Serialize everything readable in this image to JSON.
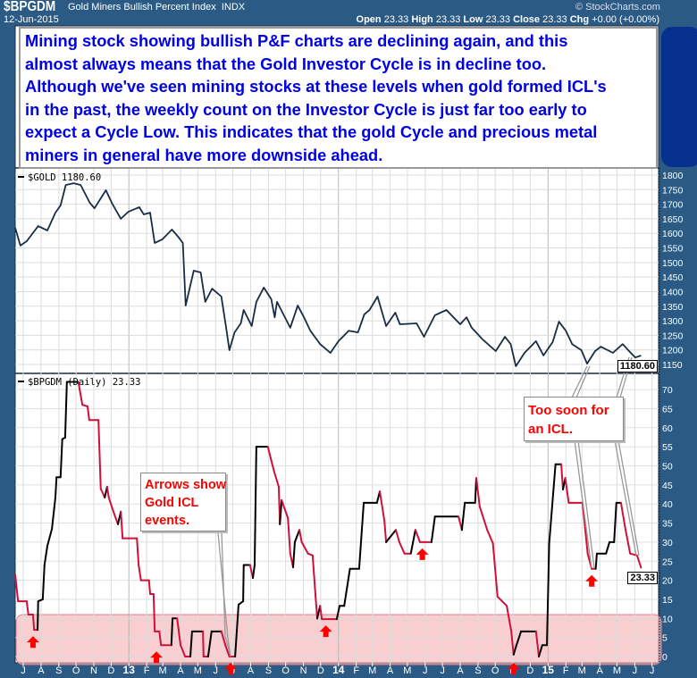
{
  "header": {
    "symbol": "$BPGDM",
    "name": "Gold Miners Bullish Percent Index",
    "exchange": "INDX",
    "copyright": "© StockCharts.com",
    "date": "12-Jun-2015",
    "ohlc": [
      {
        "label": "Open",
        "value": "23.33"
      },
      {
        "label": "High",
        "value": "23.33"
      },
      {
        "label": "Low",
        "value": "23.33"
      },
      {
        "label": "Close",
        "value": "23.33"
      },
      {
        "label": "Chg",
        "value": "+0.00 (+0.00%)"
      }
    ]
  },
  "annotation": {
    "lines": [
      "Mining stock showing bullish P&F charts are declining again, and this",
      "almost always means that the Gold Investor Cycle is in decline too.",
      "Although we've seen mining stocks at these levels when gold formed ICL's",
      "in the past, the weekly count on the Investor Cycle is just far too early to",
      "expect a Cycle Low.  This indicates that the gold Cycle and precious metal",
      "miners in general have more downside ahead."
    ],
    "callout_arrows": [
      "Arrows show",
      "Gold ICL",
      "events."
    ],
    "callout_soon": [
      "Too soon for",
      "an ICL."
    ]
  },
  "colors": {
    "background": "#2b5b84",
    "gold_line": "#1a2c44",
    "rising": "#000000",
    "falling": "#d0103a",
    "zone": "#f4b4b8",
    "arrow": "#ff0000",
    "text_blue": "#0000e6"
  },
  "chart_data": [
    {
      "type": "line",
      "legend": "$GOLD 1180.60",
      "last_value": "1180.60",
      "ylim": [
        1150,
        1800
      ],
      "y_ticks": [
        1150,
        1200,
        1250,
        1300,
        1350,
        1400,
        1450,
        1500,
        1550,
        1600,
        1650,
        1700,
        1750,
        1800
      ],
      "grid": true,
      "points": [
        [
          "2012-06-17",
          1619
        ],
        [
          "2012-06-26",
          1558
        ],
        [
          "2012-07-07",
          1573
        ],
        [
          "2012-07-27",
          1625
        ],
        [
          "2012-08-12",
          1610
        ],
        [
          "2012-08-26",
          1671
        ],
        [
          "2012-09-04",
          1696
        ],
        [
          "2012-09-13",
          1766
        ],
        [
          "2012-09-27",
          1772
        ],
        [
          "2012-10-09",
          1766
        ],
        [
          "2012-10-25",
          1705
        ],
        [
          "2012-11-02",
          1686
        ],
        [
          "2012-11-22",
          1748
        ],
        [
          "2012-12-03",
          1702
        ],
        [
          "2012-12-18",
          1650
        ],
        [
          "2012-12-31",
          1674
        ],
        [
          "2013-01-19",
          1690
        ],
        [
          "2013-01-27",
          1665
        ],
        [
          "2013-02-07",
          1671
        ],
        [
          "2013-02-15",
          1567
        ],
        [
          "2013-02-28",
          1579
        ],
        [
          "2013-03-17",
          1613
        ],
        [
          "2013-03-28",
          1588
        ],
        [
          "2013-04-05",
          1567
        ],
        [
          "2013-04-10",
          1352
        ],
        [
          "2013-04-24",
          1472
        ],
        [
          "2013-05-06",
          1466
        ],
        [
          "2013-05-14",
          1365
        ],
        [
          "2013-05-26",
          1410
        ],
        [
          "2013-06-11",
          1383
        ],
        [
          "2013-06-19",
          1282
        ],
        [
          "2013-06-25",
          1199
        ],
        [
          "2013-07-04",
          1260
        ],
        [
          "2013-07-15",
          1291
        ],
        [
          "2013-07-20",
          1337
        ],
        [
          "2013-08-03",
          1282
        ],
        [
          "2013-08-11",
          1365
        ],
        [
          "2013-08-24",
          1414
        ],
        [
          "2013-09-06",
          1374
        ],
        [
          "2013-09-12",
          1312
        ],
        [
          "2013-09-16",
          1365
        ],
        [
          "2013-10-09",
          1276
        ],
        [
          "2013-10-22",
          1352
        ],
        [
          "2013-11-02",
          1312
        ],
        [
          "2013-11-13",
          1266
        ],
        [
          "2013-11-30",
          1220
        ],
        [
          "2013-12-18",
          1190
        ],
        [
          "2014-01-01",
          1230
        ],
        [
          "2014-01-19",
          1266
        ],
        [
          "2014-02-04",
          1260
        ],
        [
          "2014-02-15",
          1322
        ],
        [
          "2014-02-24",
          1337
        ],
        [
          "2014-03-10",
          1383
        ],
        [
          "2014-03-25",
          1282
        ],
        [
          "2014-04-10",
          1328
        ],
        [
          "2014-04-18",
          1288
        ],
        [
          "2014-05-17",
          1291
        ],
        [
          "2014-05-30",
          1245
        ],
        [
          "2014-06-18",
          1319
        ],
        [
          "2014-07-08",
          1337
        ],
        [
          "2014-08-01",
          1288
        ],
        [
          "2014-08-12",
          1312
        ],
        [
          "2014-08-21",
          1276
        ],
        [
          "2014-09-09",
          1236
        ],
        [
          "2014-10-02",
          1196
        ],
        [
          "2014-10-18",
          1245
        ],
        [
          "2014-10-28",
          1220
        ],
        [
          "2014-11-06",
          1144
        ],
        [
          "2014-11-21",
          1190
        ],
        [
          "2014-12-11",
          1230
        ],
        [
          "2014-12-24",
          1181
        ],
        [
          "2015-01-09",
          1227
        ],
        [
          "2015-01-20",
          1297
        ],
        [
          "2015-02-01",
          1266
        ],
        [
          "2015-02-12",
          1220
        ],
        [
          "2015-02-28",
          1199
        ],
        [
          "2015-03-10",
          1153
        ],
        [
          "2015-03-24",
          1196
        ],
        [
          "2015-04-03",
          1211
        ],
        [
          "2015-04-24",
          1190
        ],
        [
          "2015-05-11",
          1220
        ],
        [
          "2015-05-25",
          1190
        ],
        [
          "2015-06-02",
          1174
        ],
        [
          "2015-06-12",
          1180.6
        ]
      ]
    },
    {
      "type": "line",
      "legend": "$BPGDM (Daily) 23.33",
      "last_value": "23.33",
      "ylim": [
        0,
        72
      ],
      "y_ticks": [
        0,
        5,
        10,
        15,
        20,
        25,
        30,
        35,
        40,
        45,
        50,
        55,
        60,
        65,
        70
      ],
      "grid": true,
      "zone": [
        0,
        11
      ],
      "points": [
        [
          "2012-06-17",
          21.5
        ],
        [
          "2012-06-22",
          14.5
        ],
        [
          "2012-07-07",
          14.5
        ],
        [
          "2012-07-10",
          11
        ],
        [
          "2012-07-18",
          11
        ],
        [
          "2012-07-20",
          7
        ],
        [
          "2012-07-26",
          7
        ],
        [
          "2012-07-27",
          14.5
        ],
        [
          "2012-08-04",
          15
        ],
        [
          "2012-08-07",
          24
        ],
        [
          "2012-08-12",
          29
        ],
        [
          "2012-08-20",
          33.5
        ],
        [
          "2012-08-26",
          41.7
        ],
        [
          "2012-08-28",
          47
        ],
        [
          "2012-09-04",
          47
        ],
        [
          "2012-09-07",
          57
        ],
        [
          "2012-09-12",
          57.4
        ],
        [
          "2012-09-15",
          72
        ],
        [
          "2012-10-05",
          72
        ],
        [
          "2012-10-12",
          66
        ],
        [
          "2012-10-21",
          65.6
        ],
        [
          "2012-10-24",
          62
        ],
        [
          "2012-11-09",
          62
        ],
        [
          "2012-11-13",
          44
        ],
        [
          "2012-11-20",
          41.7
        ],
        [
          "2012-11-24",
          44.5
        ],
        [
          "2012-11-27",
          41.7
        ],
        [
          "2012-12-05",
          38
        ],
        [
          "2012-12-13",
          34.7
        ],
        [
          "2012-12-18",
          38
        ],
        [
          "2012-12-21",
          31
        ],
        [
          "2013-01-15",
          31
        ],
        [
          "2013-01-18",
          24
        ],
        [
          "2013-01-22",
          20
        ],
        [
          "2013-02-05",
          20
        ],
        [
          "2013-02-07",
          16.4
        ],
        [
          "2013-02-13",
          16.4
        ],
        [
          "2013-02-15",
          6.6
        ],
        [
          "2013-02-23",
          6.6
        ],
        [
          "2013-02-26",
          3
        ],
        [
          "2013-03-16",
          3
        ],
        [
          "2013-03-18",
          10
        ],
        [
          "2013-03-26",
          10
        ],
        [
          "2013-04-01",
          3
        ],
        [
          "2013-04-09",
          0
        ],
        [
          "2013-04-18",
          0
        ],
        [
          "2013-04-21",
          6.6
        ],
        [
          "2013-05-10",
          6.6
        ],
        [
          "2013-05-11",
          0
        ],
        [
          "2013-05-19",
          0
        ],
        [
          "2013-05-25",
          6.6
        ],
        [
          "2013-06-11",
          6.6
        ],
        [
          "2013-06-18",
          3
        ],
        [
          "2013-06-25",
          0
        ],
        [
          "2013-07-05",
          0
        ],
        [
          "2013-07-11",
          13.6
        ],
        [
          "2013-07-19",
          14.5
        ],
        [
          "2013-07-20",
          24
        ],
        [
          "2013-07-31",
          24
        ],
        [
          "2013-08-05",
          20.6
        ],
        [
          "2013-08-08",
          24
        ],
        [
          "2013-08-11",
          55
        ],
        [
          "2013-08-31",
          55
        ],
        [
          "2013-09-05",
          52
        ],
        [
          "2013-09-11",
          48.5
        ],
        [
          "2013-09-19",
          44.5
        ],
        [
          "2013-09-21",
          34.7
        ],
        [
          "2013-09-24",
          41
        ],
        [
          "2013-10-05",
          36.3
        ],
        [
          "2013-10-09",
          27
        ],
        [
          "2013-10-14",
          23.4
        ],
        [
          "2013-10-17",
          30
        ],
        [
          "2013-10-25",
          33.2
        ],
        [
          "2013-10-29",
          30
        ],
        [
          "2013-11-09",
          27
        ],
        [
          "2013-11-17",
          26.5
        ],
        [
          "2013-11-22",
          16
        ],
        [
          "2013-11-25",
          10
        ],
        [
          "2013-11-30",
          13.3
        ],
        [
          "2013-12-03",
          9.8
        ],
        [
          "2013-12-29",
          9.8
        ],
        [
          "2014-01-03",
          13.3
        ],
        [
          "2014-01-11",
          13.3
        ],
        [
          "2014-01-21",
          23
        ],
        [
          "2014-02-06",
          23
        ],
        [
          "2014-02-14",
          40.3
        ],
        [
          "2014-03-09",
          40.3
        ],
        [
          "2014-03-14",
          43.3
        ],
        [
          "2014-03-22",
          35.6
        ],
        [
          "2014-03-25",
          30
        ],
        [
          "2014-04-11",
          33.2
        ],
        [
          "2014-04-17",
          30
        ],
        [
          "2014-04-26",
          27
        ],
        [
          "2014-05-07",
          27
        ],
        [
          "2014-05-15",
          33.2
        ],
        [
          "2014-05-23",
          30
        ],
        [
          "2014-06-12",
          30
        ],
        [
          "2014-06-18",
          36.7
        ],
        [
          "2014-07-29",
          36.7
        ],
        [
          "2014-08-04",
          33.2
        ],
        [
          "2014-08-09",
          40.3
        ],
        [
          "2014-08-27",
          40.3
        ],
        [
          "2014-08-29",
          46.8
        ],
        [
          "2014-09-04",
          39.3
        ],
        [
          "2014-09-17",
          33.2
        ],
        [
          "2014-09-27",
          29.7
        ],
        [
          "2014-10-05",
          15.7
        ],
        [
          "2014-10-21",
          13.3
        ],
        [
          "2014-10-29",
          6.6
        ],
        [
          "2014-11-02",
          0.5
        ],
        [
          "2014-11-07",
          3
        ],
        [
          "2014-11-15",
          6.6
        ],
        [
          "2014-12-11",
          6.6
        ],
        [
          "2014-12-16",
          0
        ],
        [
          "2014-12-22",
          3
        ],
        [
          "2014-12-30",
          3
        ],
        [
          "2015-01-03",
          29.7
        ],
        [
          "2015-01-14",
          50.4
        ],
        [
          "2015-01-24",
          50.4
        ],
        [
          "2015-01-27",
          43.8
        ],
        [
          "2015-01-31",
          46.8
        ],
        [
          "2015-02-06",
          40.3
        ],
        [
          "2015-03-02",
          40.3
        ],
        [
          "2015-03-11",
          27
        ],
        [
          "2015-03-18",
          23
        ],
        [
          "2015-03-25",
          23
        ],
        [
          "2015-03-27",
          27
        ],
        [
          "2015-04-12",
          27
        ],
        [
          "2015-04-18",
          30
        ],
        [
          "2015-04-26",
          30
        ],
        [
          "2015-04-30",
          40.3
        ],
        [
          "2015-05-08",
          40.3
        ],
        [
          "2015-05-16",
          33.2
        ],
        [
          "2015-05-24",
          27
        ],
        [
          "2015-06-05",
          26.5
        ],
        [
          "2015-06-12",
          23.33
        ]
      ],
      "icl_arrows": [
        [
          "2012-07-18",
          7
        ],
        [
          "2013-02-18",
          3
        ],
        [
          "2013-06-27",
          0
        ],
        [
          "2013-12-10",
          9.8
        ],
        [
          "2014-05-27",
          30
        ],
        [
          "2014-11-02",
          0
        ],
        [
          "2015-03-18",
          23
        ]
      ]
    }
  ],
  "x_axis": {
    "start": "2012-07-01",
    "ticks": [
      "J",
      "A",
      "S",
      "O",
      "N",
      "D",
      "13",
      "F",
      "M",
      "A",
      "M",
      "J",
      "J",
      "A",
      "S",
      "O",
      "N",
      "D",
      "14",
      "F",
      "M",
      "A",
      "M",
      "J",
      "J",
      "A",
      "S",
      "O",
      "N",
      "D",
      "15",
      "F",
      "M",
      "A",
      "M",
      "J",
      "J"
    ]
  }
}
